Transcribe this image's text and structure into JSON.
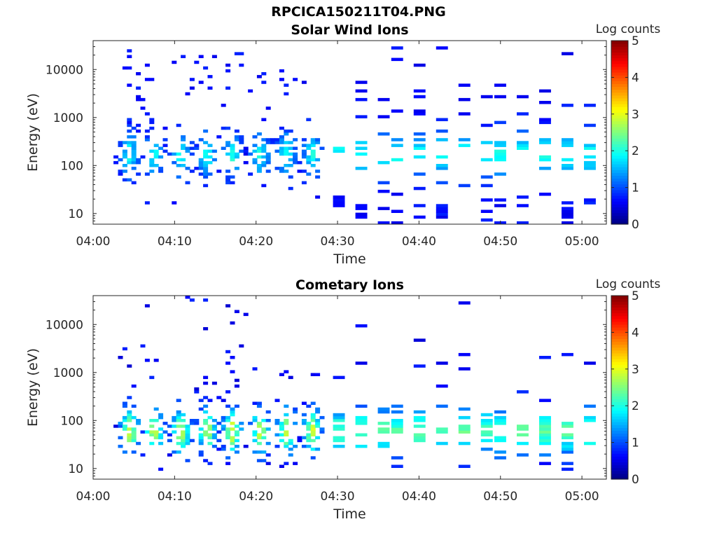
{
  "figure": {
    "title": "RPCICA150211T04.PNG"
  },
  "chart_data": [
    {
      "type": "heatmap",
      "title": "Solar Wind Ions",
      "xlabel": "Time",
      "ylabel": "Energy (eV)",
      "xticks": [
        "04:00",
        "04:10",
        "04:20",
        "04:30",
        "04:40",
        "04:50",
        "05:00"
      ],
      "xlim_minutes": [
        0,
        63
      ],
      "yscale": "log",
      "ylim": [
        6,
        40000
      ],
      "yticks": [
        10,
        100,
        1000,
        10000
      ],
      "ytick_labels": [
        "10",
        "100",
        "1000",
        "10000"
      ],
      "colorbar": {
        "label": "Log counts",
        "range": [
          0,
          5
        ],
        "ticks": [
          "0",
          "1",
          "2",
          "3",
          "4",
          "5"
        ],
        "colormap": "jet"
      },
      "description_levels": {
        "early_peak_log_counts": 2,
        "late_peak_log_counts": 1.5
      }
    },
    {
      "type": "heatmap",
      "title": "Cometary Ions",
      "xlabel": "Time",
      "ylabel": "Energy (eV)",
      "xticks": [
        "04:00",
        "04:10",
        "04:20",
        "04:30",
        "04:40",
        "04:50",
        "05:00"
      ],
      "xlim_minutes": [
        0,
        63
      ],
      "yscale": "log",
      "ylim": [
        6,
        40000
      ],
      "yticks": [
        10,
        100,
        1000,
        10000
      ],
      "ytick_labels": [
        "10",
        "100",
        "1000",
        "10000"
      ],
      "colorbar": {
        "label": "Log counts",
        "range": [
          0,
          5
        ],
        "ticks": [
          "0",
          "1",
          "2",
          "3",
          "4",
          "5"
        ],
        "colormap": "jet"
      },
      "description_levels": {
        "early_peak_log_counts": 3,
        "late_peak_log_counts": 2
      }
    }
  ]
}
